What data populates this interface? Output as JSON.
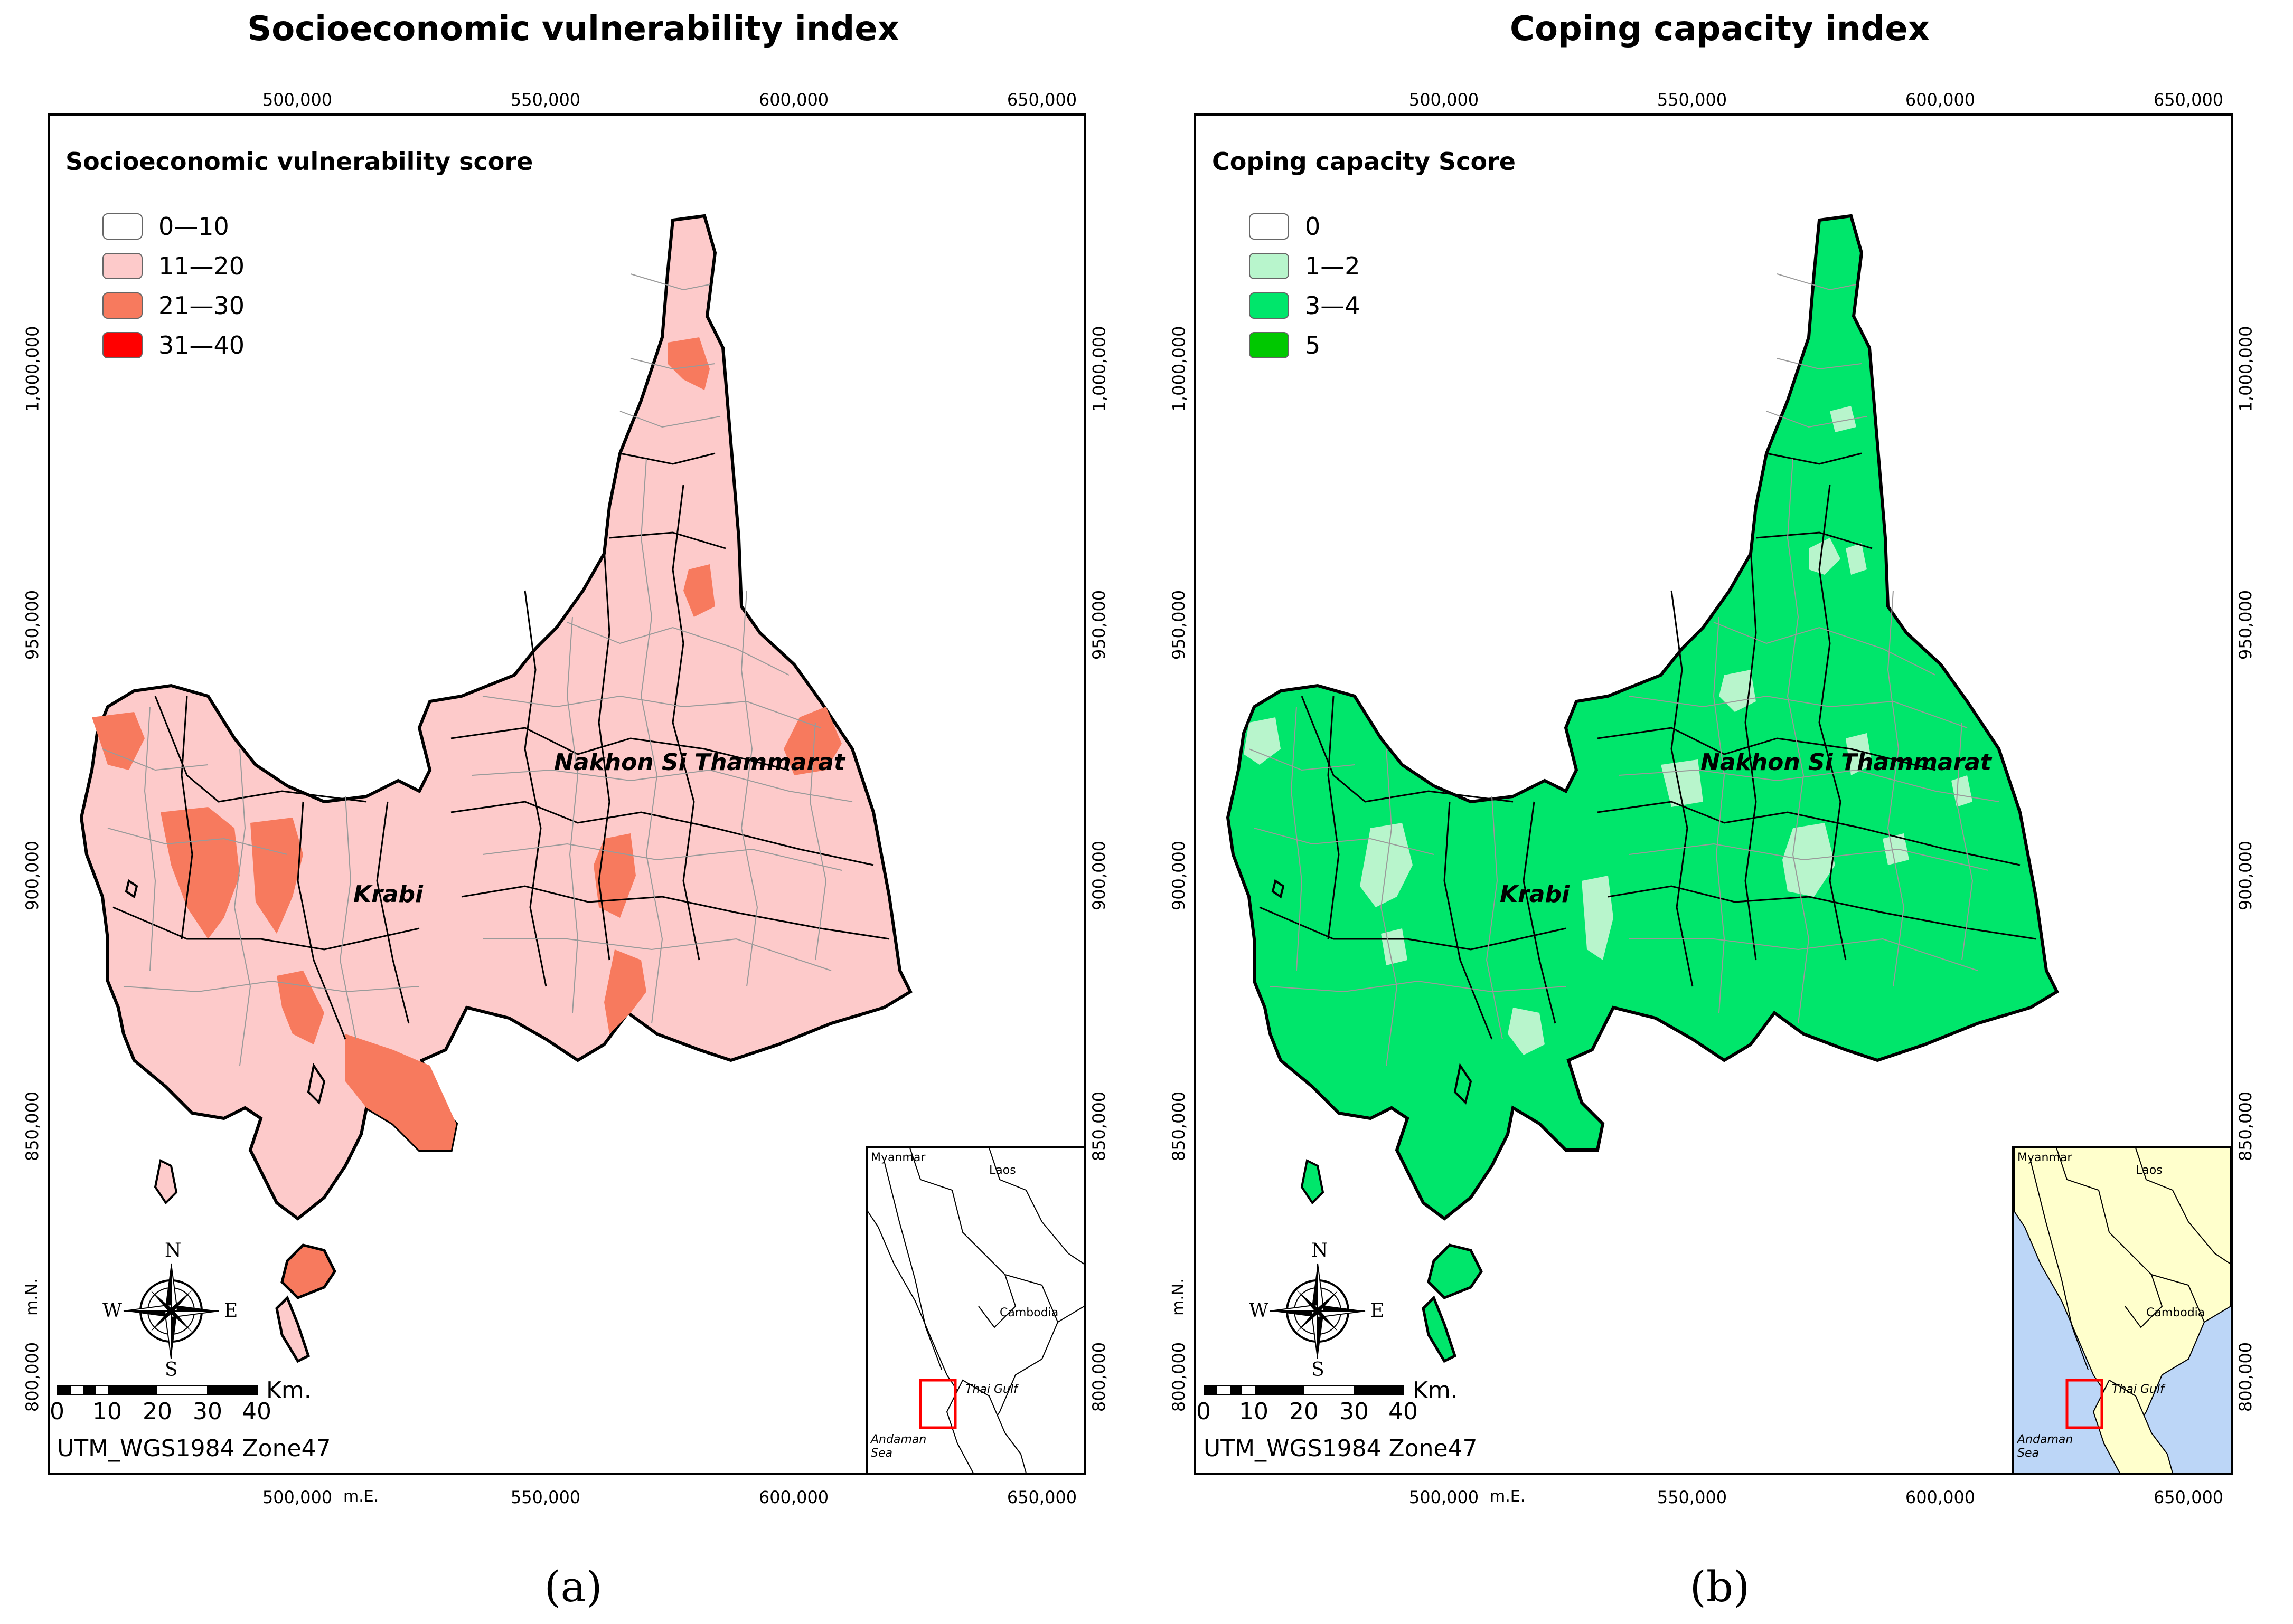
{
  "panels": [
    {
      "title": "Socioeconomic vulnerability index",
      "sub_label": "(a)",
      "legend_title": "Socioeconomic vulnerability score",
      "legend": [
        {
          "label": "0—10",
          "color": "#ffffff"
        },
        {
          "label": "11—20",
          "color": "#fdcaca"
        },
        {
          "label": "21—30",
          "color": "#f77a5e"
        },
        {
          "label": "31—40",
          "color": "#ff0000"
        }
      ],
      "base_color": "#fdcaca",
      "highlight_color": "#f77a5e",
      "inset_land_color": "#ffffff",
      "inset_sea_color": "#ffffff"
    },
    {
      "title": "Coping capacity index",
      "sub_label": "(b)",
      "legend_title": "Coping capacity Score",
      "legend": [
        {
          "label": "0",
          "color": "#ffffff"
        },
        {
          "label": "1—2",
          "color": "#b8f5cc"
        },
        {
          "label": "3—4",
          "color": "#00e66b"
        },
        {
          "label": "5",
          "color": "#00c800"
        }
      ],
      "base_color": "#00e66b",
      "highlight_color": "#b8f5cc",
      "inset_land_color": "#ffffcc",
      "inset_sea_color": "#bcd6f7"
    }
  ],
  "axes": {
    "easting_ticks": [
      "500,000",
      "550,000",
      "600,000",
      "650,000"
    ],
    "northing_ticks": [
      "1,000,000",
      "950,000",
      "900,000",
      "850,000",
      "800,000"
    ],
    "easting_unit": "m.E.",
    "northing_unit": "m.N."
  },
  "place_names": {
    "nakhon": "Nakhon Si Thammarat",
    "krabi": "Krabi"
  },
  "north_arrow": {
    "n": "N",
    "s": "S",
    "e": "E",
    "w": "W"
  },
  "scale_bar": {
    "numbers": [
      "0",
      "10",
      "20",
      "30",
      "40"
    ],
    "unit": "Km."
  },
  "projection": "UTM_WGS1984 Zone47",
  "inset": {
    "labels": {
      "myanmar": "Myanmar",
      "laos": "Laos",
      "cambodia": "Cambodia",
      "thai_gulf": "Thai Gulf",
      "andaman": "Andaman",
      "sea": "Sea"
    }
  },
  "colors": {
    "boundary": "#000000",
    "sub_boundary": "#9a9a9a",
    "inset_box": "#ff0000"
  },
  "icons": [
    "compass-rose-icon"
  ]
}
